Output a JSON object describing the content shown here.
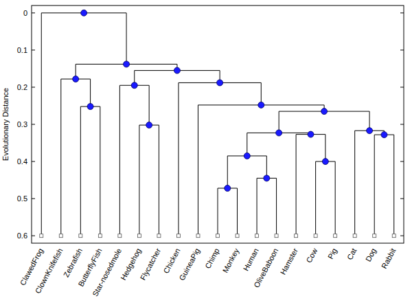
{
  "chart_data": {
    "type": "dendrogram",
    "y_label": "Evolutionary Distance",
    "ylim": [
      -0.02,
      0.62
    ],
    "yticks": [
      0,
      0.1,
      0.2,
      0.3,
      0.4,
      0.5,
      0.6
    ],
    "color": "#1a1aff",
    "marker": "circle",
    "leaf_height": 0.6,
    "tree": {
      "height": 0,
      "children": [
        "ClawedFrog",
        {
          "height": 0.138,
          "children": [
            {
              "height": 0.178,
              "children": [
                "ClownKnifefish",
                {
                  "height": 0.252,
                  "children": [
                    "Zebrafish",
                    "ButterflyFish"
                  ]
                }
              ]
            },
            {
              "height": 0.155,
              "children": [
                {
                  "height": 0.195,
                  "children": [
                    "Star-nosedmole",
                    {
                      "height": 0.302,
                      "children": [
                        "Hedgehog",
                        "Flycatcher"
                      ]
                    }
                  ]
                },
                {
                  "height": 0.188,
                  "children": [
                    "Chicken",
                    {
                      "height": 0.248,
                      "children": [
                        "GuineaPig",
                        {
                          "height": 0.265,
                          "children": [
                            {
                              "height": 0.323,
                              "children": [
                                {
                                  "height": 0.385,
                                  "children": [
                                    {
                                      "height": 0.472,
                                      "children": [
                                        "Chimp",
                                        "Monkey"
                                      ]
                                    },
                                    {
                                      "height": 0.445,
                                      "children": [
                                        "Human",
                                        "OliveBaboon"
                                      ]
                                    }
                                  ]
                                },
                                {
                                  "height": 0.327,
                                  "children": [
                                    "Hamster",
                                    {
                                      "height": 0.4,
                                      "children": [
                                        "Cow",
                                        "Pig"
                                      ]
                                    }
                                  ]
                                }
                              ]
                            },
                            {
                              "height": 0.317,
                              "children": [
                                "Cat",
                                {
                                  "height": 0.328,
                                  "children": [
                                    "Dog",
                                    "Rabbit"
                                  ]
                                }
                              ]
                            }
                          ]
                        }
                      ]
                    }
                  ]
                }
              ]
            }
          ]
        }
      ]
    }
  }
}
